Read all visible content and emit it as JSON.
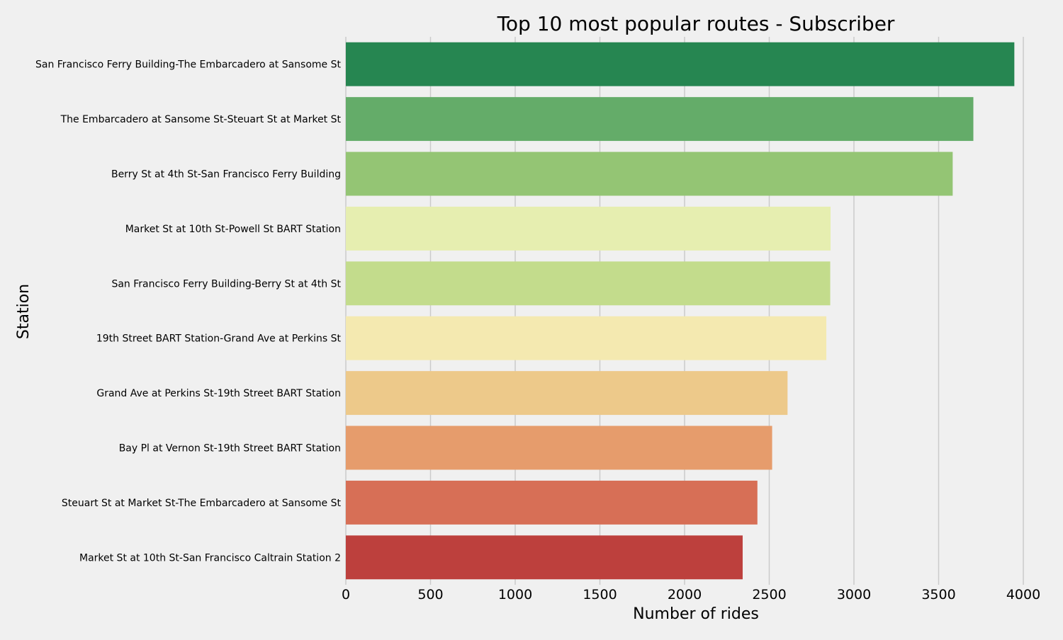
{
  "chart_data": {
    "type": "bar",
    "orientation": "horizontal",
    "title": "Top 10 most popular routes - Subscriber",
    "xlabel": "Number of rides",
    "ylabel": "Station",
    "xlim": [
      0,
      4050
    ],
    "xticks": [
      0,
      500,
      1000,
      1500,
      2000,
      2500,
      3000,
      3500,
      4000
    ],
    "grid": "vertical",
    "legend": "none",
    "categories": [
      "San Francisco Ferry Building-The Embarcadero at Sansome St",
      "The Embarcadero at Sansome St-Steuart St at Market St",
      "Berry St at 4th St-San Francisco Ferry Building",
      "Market St at 10th St-Powell St BART Station",
      "San Francisco Ferry Building-Berry St at 4th St",
      "19th Street BART Station-Grand Ave at Perkins St",
      "Grand Ave at Perkins St-19th Street BART Station",
      "Bay Pl at Vernon St-19th Street BART Station",
      "Steuart St at Market St-The Embarcadero at Sansome St",
      "Market St at 10th St-San Francisco Caltrain Station 2"
    ],
    "values": [
      3947,
      3705,
      3583,
      2862,
      2860,
      2837,
      2608,
      2517,
      2430,
      2343
    ],
    "colors": [
      "#268651",
      "#64ac69",
      "#94c574",
      "#e6eeb0",
      "#c3dc8c",
      "#f4e9b0",
      "#edc98a",
      "#e69c6c",
      "#d76f56",
      "#bd403d"
    ]
  },
  "style": {
    "background": "#f0f0f0",
    "grid_color": "#cbcbcb",
    "text_color": "#000000"
  }
}
